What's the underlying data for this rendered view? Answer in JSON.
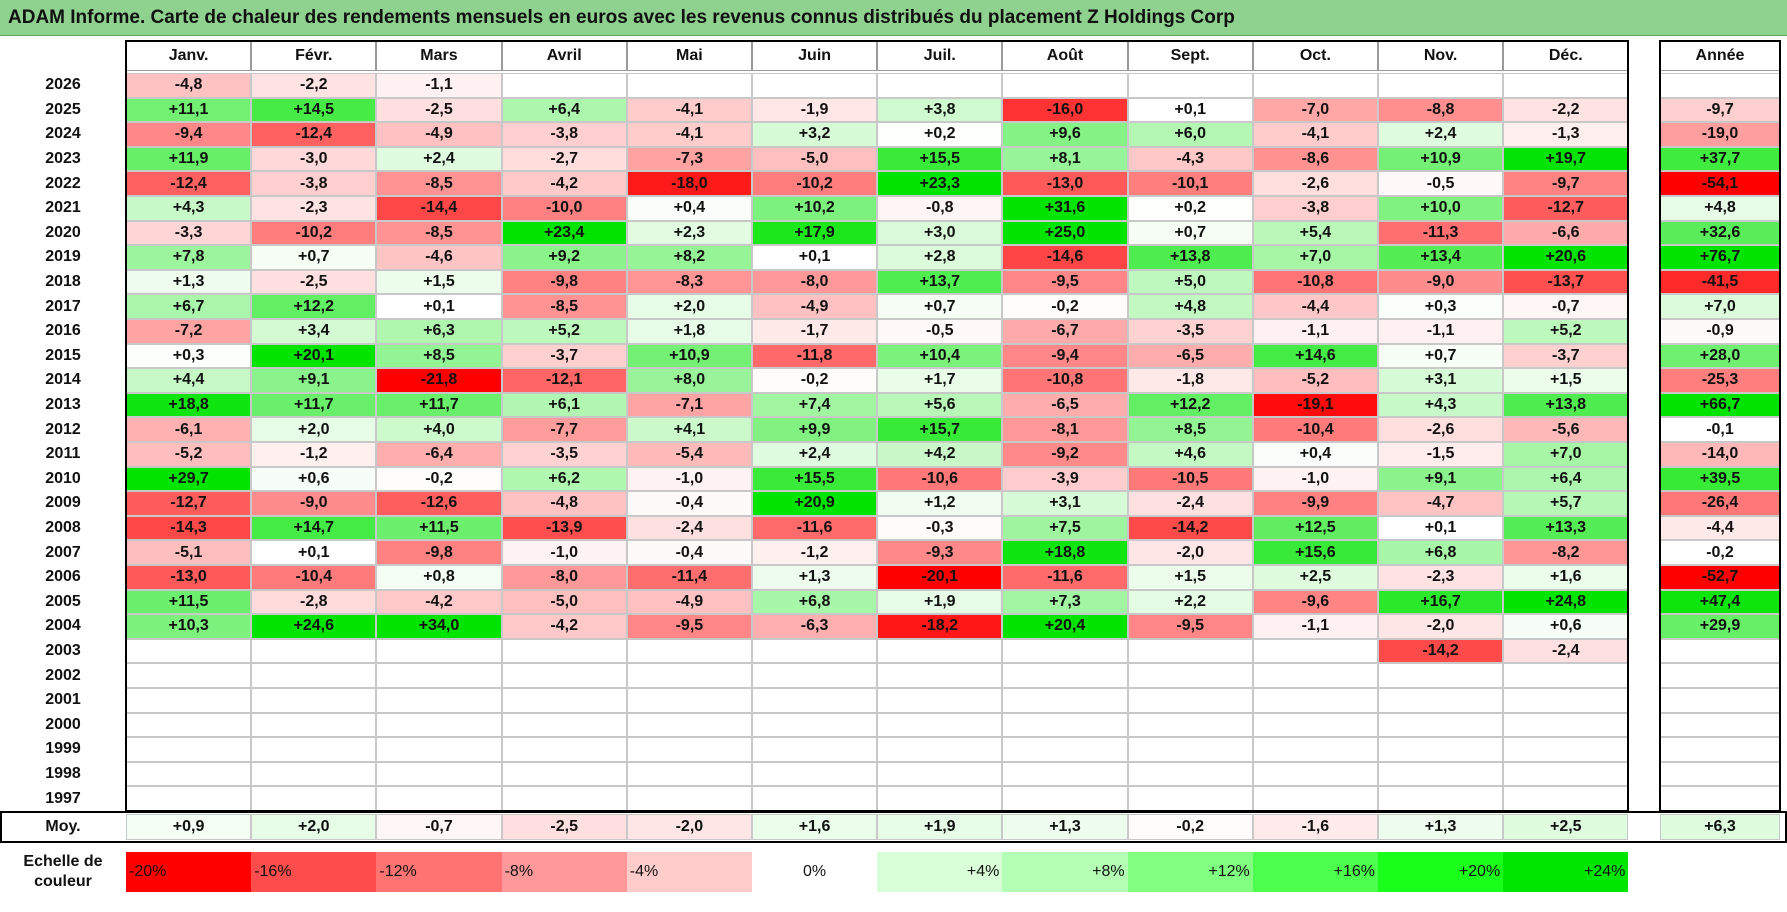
{
  "title": "ADAM Informe. Carte de chaleur des rendements mensuels en euros avec les revenus connus distribués du placement Z Holdings Corp",
  "chart_data": {
    "type": "heatmap",
    "columns": [
      "Janv.",
      "Févr.",
      "Mars",
      "Avril",
      "Mai",
      "Juin",
      "Juil.",
      "Août",
      "Sept.",
      "Oct.",
      "Nov.",
      "Déc."
    ],
    "year_header": "Année",
    "rows": [
      {
        "year": "2026",
        "values": [
          "-4,8",
          "-2,2",
          "-1,1",
          "",
          "",
          "",
          "",
          "",
          "",
          "",
          "",
          ""
        ],
        "annual": ""
      },
      {
        "year": "2025",
        "values": [
          "+11,1",
          "+14,5",
          "-2,5",
          "+6,4",
          "-4,1",
          "-1,9",
          "+3,8",
          "-16,0",
          "+0,1",
          "-7,0",
          "-8,8",
          "-2,2"
        ],
        "annual": "-9,7"
      },
      {
        "year": "2024",
        "values": [
          "-9,4",
          "-12,4",
          "-4,9",
          "-3,8",
          "-4,1",
          "+3,2",
          "+0,2",
          "+9,6",
          "+6,0",
          "-4,1",
          "+2,4",
          "-1,3"
        ],
        "annual": "-19,0"
      },
      {
        "year": "2023",
        "values": [
          "+11,9",
          "-3,0",
          "+2,4",
          "-2,7",
          "-7,3",
          "-5,0",
          "+15,5",
          "+8,1",
          "-4,3",
          "-8,6",
          "+10,9",
          "+19,7"
        ],
        "annual": "+37,7"
      },
      {
        "year": "2022",
        "values": [
          "-12,4",
          "-3,8",
          "-8,5",
          "-4,2",
          "-18,0",
          "-10,2",
          "+23,3",
          "-13,0",
          "-10,1",
          "-2,6",
          "-0,5",
          "-9,7"
        ],
        "annual": "-54,1"
      },
      {
        "year": "2021",
        "values": [
          "+4,3",
          "-2,3",
          "-14,4",
          "-10,0",
          "+0,4",
          "+10,2",
          "-0,8",
          "+31,6",
          "+0,2",
          "-3,8",
          "+10,0",
          "-12,7"
        ],
        "annual": "+4,8"
      },
      {
        "year": "2020",
        "values": [
          "-3,3",
          "-10,2",
          "-8,5",
          "+23,4",
          "+2,3",
          "+17,9",
          "+3,0",
          "+25,0",
          "+0,7",
          "+5,4",
          "-11,3",
          "-6,6"
        ],
        "annual": "+32,6"
      },
      {
        "year": "2019",
        "values": [
          "+7,8",
          "+0,7",
          "-4,6",
          "+9,2",
          "+8,2",
          "+0,1",
          "+2,8",
          "-14,6",
          "+13,8",
          "+7,0",
          "+13,4",
          "+20,6"
        ],
        "annual": "+76,7"
      },
      {
        "year": "2018",
        "values": [
          "+1,3",
          "-2,5",
          "+1,5",
          "-9,8",
          "-8,3",
          "-8,0",
          "+13,7",
          "-9,5",
          "+5,0",
          "-10,8",
          "-9,0",
          "-13,7"
        ],
        "annual": "-41,5"
      },
      {
        "year": "2017",
        "values": [
          "+6,7",
          "+12,2",
          "+0,1",
          "-8,5",
          "+2,0",
          "-4,9",
          "+0,7",
          "-0,2",
          "+4,8",
          "-4,4",
          "+0,3",
          "-0,7"
        ],
        "annual": "+7,0"
      },
      {
        "year": "2016",
        "values": [
          "-7,2",
          "+3,4",
          "+6,3",
          "+5,2",
          "+1,8",
          "-1,7",
          "-0,5",
          "-6,7",
          "-3,5",
          "-1,1",
          "-1,1",
          "+5,2"
        ],
        "annual": "-0,9"
      },
      {
        "year": "2015",
        "values": [
          "+0,3",
          "+20,1",
          "+8,5",
          "-3,7",
          "+10,9",
          "-11,8",
          "+10,4",
          "-9,4",
          "-6,5",
          "+14,6",
          "+0,7",
          "-3,7"
        ],
        "annual": "+28,0"
      },
      {
        "year": "2014",
        "values": [
          "+4,4",
          "+9,1",
          "-21,8",
          "-12,1",
          "+8,0",
          "-0,2",
          "+1,7",
          "-10,8",
          "-1,8",
          "-5,2",
          "+3,1",
          "+1,5"
        ],
        "annual": "-25,3"
      },
      {
        "year": "2013",
        "values": [
          "+18,8",
          "+11,7",
          "+11,7",
          "+6,1",
          "-7,1",
          "+7,4",
          "+5,6",
          "-6,5",
          "+12,2",
          "-19,1",
          "+4,3",
          "+13,8"
        ],
        "annual": "+66,7"
      },
      {
        "year": "2012",
        "values": [
          "-6,1",
          "+2,0",
          "+4,0",
          "-7,7",
          "+4,1",
          "+9,9",
          "+15,7",
          "-8,1",
          "+8,5",
          "-10,4",
          "-2,6",
          "-5,6"
        ],
        "annual": "-0,1"
      },
      {
        "year": "2011",
        "values": [
          "-5,2",
          "-1,2",
          "-6,4",
          "-3,5",
          "-5,4",
          "+2,4",
          "+4,2",
          "-9,2",
          "+4,6",
          "+0,4",
          "-1,5",
          "+7,0"
        ],
        "annual": "-14,0"
      },
      {
        "year": "2010",
        "values": [
          "+29,7",
          "+0,6",
          "-0,2",
          "+6,2",
          "-1,0",
          "+15,5",
          "-10,6",
          "-3,9",
          "-10,5",
          "-1,0",
          "+9,1",
          "+6,4"
        ],
        "annual": "+39,5"
      },
      {
        "year": "2009",
        "values": [
          "-12,7",
          "-9,0",
          "-12,6",
          "-4,8",
          "-0,4",
          "+20,9",
          "+1,2",
          "+3,1",
          "-2,4",
          "-9,9",
          "-4,7",
          "+5,7"
        ],
        "annual": "-26,4"
      },
      {
        "year": "2008",
        "values": [
          "-14,3",
          "+14,7",
          "+11,5",
          "-13,9",
          "-2,4",
          "-11,6",
          "-0,3",
          "+7,5",
          "-14,2",
          "+12,5",
          "+0,1",
          "+13,3"
        ],
        "annual": "-4,4"
      },
      {
        "year": "2007",
        "values": [
          "-5,1",
          "+0,1",
          "-9,8",
          "-1,0",
          "-0,4",
          "-1,2",
          "-9,3",
          "+18,8",
          "-2,0",
          "+15,6",
          "+6,8",
          "-8,2"
        ],
        "annual": "-0,2"
      },
      {
        "year": "2006",
        "values": [
          "-13,0",
          "-10,4",
          "+0,8",
          "-8,0",
          "-11,4",
          "+1,3",
          "-20,1",
          "-11,6",
          "+1,5",
          "+2,5",
          "-2,3",
          "+1,6"
        ],
        "annual": "-52,7"
      },
      {
        "year": "2005",
        "values": [
          "+11,5",
          "-2,8",
          "-4,2",
          "-5,0",
          "-4,9",
          "+6,8",
          "+1,9",
          "+7,3",
          "+2,2",
          "-9,6",
          "+16,7",
          "+24,8"
        ],
        "annual": "+47,4"
      },
      {
        "year": "2004",
        "values": [
          "+10,3",
          "+24,6",
          "+34,0",
          "-4,2",
          "-9,5",
          "-6,3",
          "-18,2",
          "+20,4",
          "-9,5",
          "-1,1",
          "-2,0",
          "+0,6"
        ],
        "annual": "+29,9"
      },
      {
        "year": "2003",
        "values": [
          "",
          "",
          "",
          "",
          "",
          "",
          "",
          "",
          "",
          "",
          "-14,2",
          "-2,4"
        ],
        "annual": ""
      },
      {
        "year": "2002",
        "values": [
          "",
          "",
          "",
          "",
          "",
          "",
          "",
          "",
          "",
          "",
          "",
          ""
        ],
        "annual": ""
      },
      {
        "year": "2001",
        "values": [
          "",
          "",
          "",
          "",
          "",
          "",
          "",
          "",
          "",
          "",
          "",
          ""
        ],
        "annual": ""
      },
      {
        "year": "2000",
        "values": [
          "",
          "",
          "",
          "",
          "",
          "",
          "",
          "",
          "",
          "",
          "",
          ""
        ],
        "annual": ""
      },
      {
        "year": "1999",
        "values": [
          "",
          "",
          "",
          "",
          "",
          "",
          "",
          "",
          "",
          "",
          "",
          ""
        ],
        "annual": ""
      },
      {
        "year": "1998",
        "values": [
          "",
          "",
          "",
          "",
          "",
          "",
          "",
          "",
          "",
          "",
          "",
          ""
        ],
        "annual": ""
      },
      {
        "year": "1997",
        "values": [
          "",
          "",
          "",
          "",
          "",
          "",
          "",
          "",
          "",
          "",
          "",
          ""
        ],
        "annual": ""
      }
    ],
    "average": {
      "label": "Moy.",
      "values": [
        "+0,9",
        "+2,0",
        "-0,7",
        "-2,5",
        "-2,0",
        "+1,6",
        "+1,9",
        "+1,3",
        "-0,2",
        "-1,6",
        "+1,3",
        "+2,5"
      ],
      "annual": "+6,3"
    },
    "color_scale": {
      "label": "Echelle de couleur",
      "stops": [
        {
          "label": "-20%",
          "color": "#ff0000"
        },
        {
          "label": "-16%",
          "color": "#ff4d4d"
        },
        {
          "label": "-12%",
          "color": "#ff7373"
        },
        {
          "label": "-8%",
          "color": "#ff9999"
        },
        {
          "label": "-4%",
          "color": "#ffcccc"
        },
        {
          "label": "0%",
          "color": "#ffffff"
        },
        {
          "label": "+4%",
          "color": "#d9ffd9"
        },
        {
          "label": "+8%",
          "color": "#b3ffb3"
        },
        {
          "label": "+12%",
          "color": "#80ff80"
        },
        {
          "label": "+16%",
          "color": "#4dff4d"
        },
        {
          "label": "+20%",
          "color": "#1aff1a"
        },
        {
          "label": "+24%",
          "color": "#00e600"
        }
      ]
    }
  }
}
